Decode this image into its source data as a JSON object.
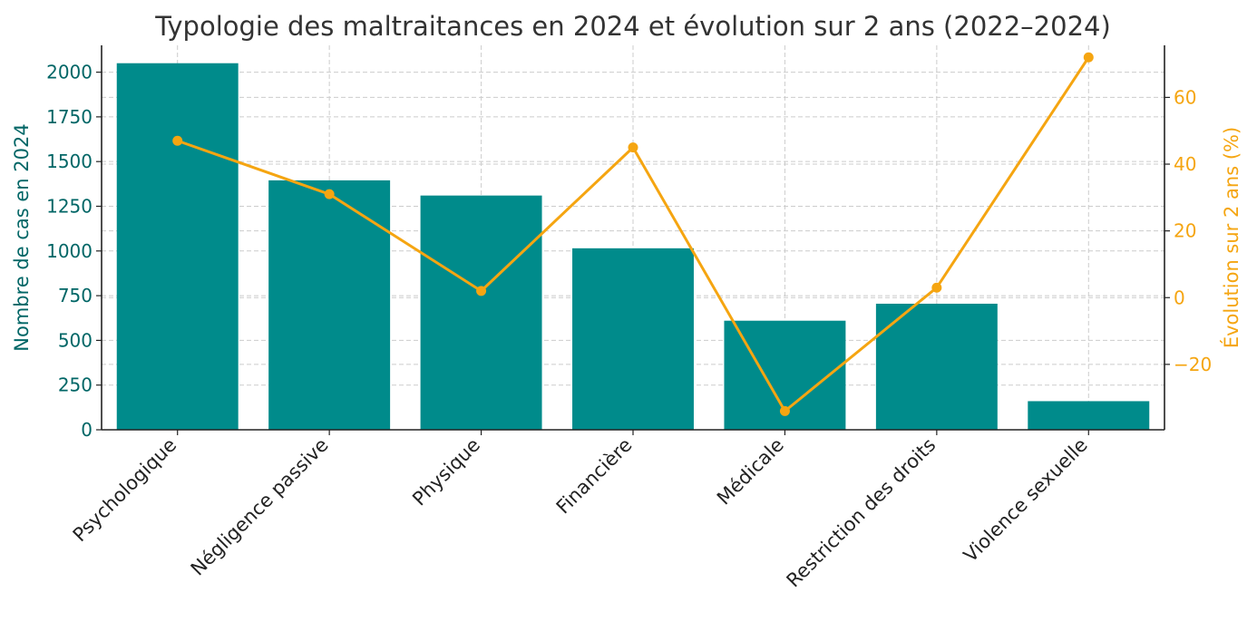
{
  "chart_data": {
    "type": "bar",
    "title": "Typologie des maltraitances en 2024 et évolution sur 2 ans (2022–2024)",
    "categories": [
      "Psychologique",
      "Négligence passive",
      "Physique",
      "Financière",
      "Médicale",
      "Restriction des droits",
      "Violence sexuelle"
    ],
    "series": [
      {
        "type": "bar",
        "axis": "left",
        "values": [
          2050,
          1395,
          1310,
          1015,
          610,
          705,
          160
        ]
      },
      {
        "type": "line",
        "axis": "right",
        "values": [
          47,
          31,
          2,
          45,
          -34,
          3,
          72
        ]
      }
    ],
    "ylabel": "Nombre de cas en 2024",
    "ylim": [
      0,
      2150
    ],
    "yticks": [
      0,
      250,
      500,
      750,
      1000,
      1250,
      1500,
      1750,
      2000
    ],
    "y2label": "Évolution sur 2 ans (%)",
    "y2lim": [
      -39.6,
      75.6
    ],
    "y2ticks": [
      -20,
      0,
      20,
      40,
      60
    ],
    "grid": true,
    "colors": {
      "bars": "#008b8b",
      "line": "#f5a511",
      "left_axis": "#006666",
      "right_axis": "#f5a511",
      "title": "#333333"
    }
  }
}
